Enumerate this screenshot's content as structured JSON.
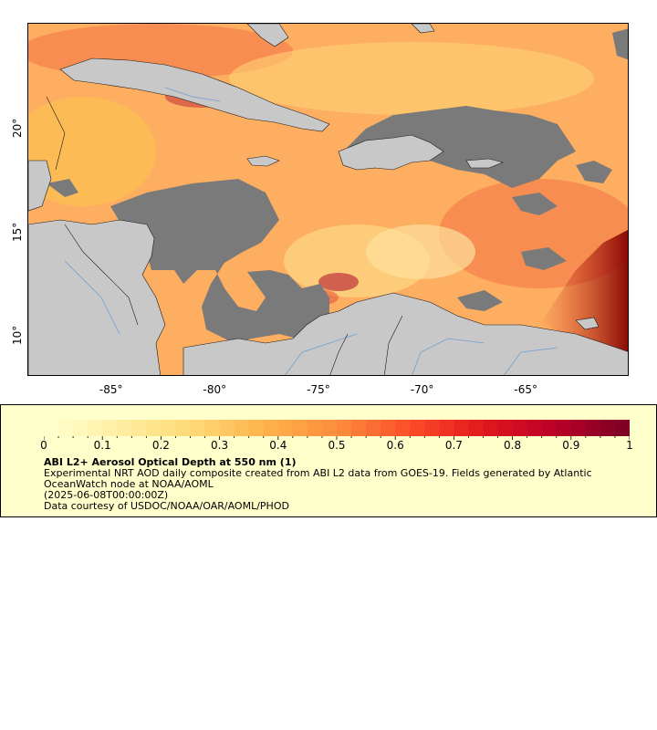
{
  "map": {
    "lon_range": [
      -89,
      -60
    ],
    "lat_range": [
      8,
      25
    ],
    "x_ticks": [
      {
        "value": -85,
        "label": "-85°"
      },
      {
        "value": -80,
        "label": "-80°"
      },
      {
        "value": -75,
        "label": "-75°"
      },
      {
        "value": -70,
        "label": "-70°"
      },
      {
        "value": -65,
        "label": "-65°"
      }
    ],
    "y_ticks": [
      {
        "value": 20,
        "label": "20°"
      },
      {
        "value": 15,
        "label": "15°"
      },
      {
        "value": 10,
        "label": "10°"
      }
    ],
    "colors": {
      "land": "#c8c8c8",
      "no_data": "#7a7a7a",
      "rivers": "#6fa0d0",
      "borders": "#1a1a1a",
      "frame": "#000000"
    }
  },
  "legend": {
    "colorbar_labels": [
      "0",
      "0.1",
      "0.2",
      "0.3",
      "0.4",
      "0.5",
      "0.6",
      "0.7",
      "0.8",
      "0.9",
      "1"
    ],
    "colorbar_range": [
      0,
      1
    ],
    "colorbar_colors": [
      "#ffffcc",
      "#ffeda0",
      "#fed976",
      "#feb24c",
      "#fd8d3c",
      "#fc4e2a",
      "#e31a1c",
      "#bd0026",
      "#800026"
    ],
    "title": "ABI L2+ Aerosol Optical Depth at 550 nm (1)",
    "description_lines": [
      "Experimental NRT AOD daily composite created from ABI L2 data from GOES-19. Fields generated by Atlantic",
      "OceanWatch node at NOAA/AOML",
      "(2025-06-08T00:00:00Z)",
      "Data courtesy of USDOC/NOAA/OAR/AOML/PHOD"
    ],
    "background": "#ffffcc"
  }
}
